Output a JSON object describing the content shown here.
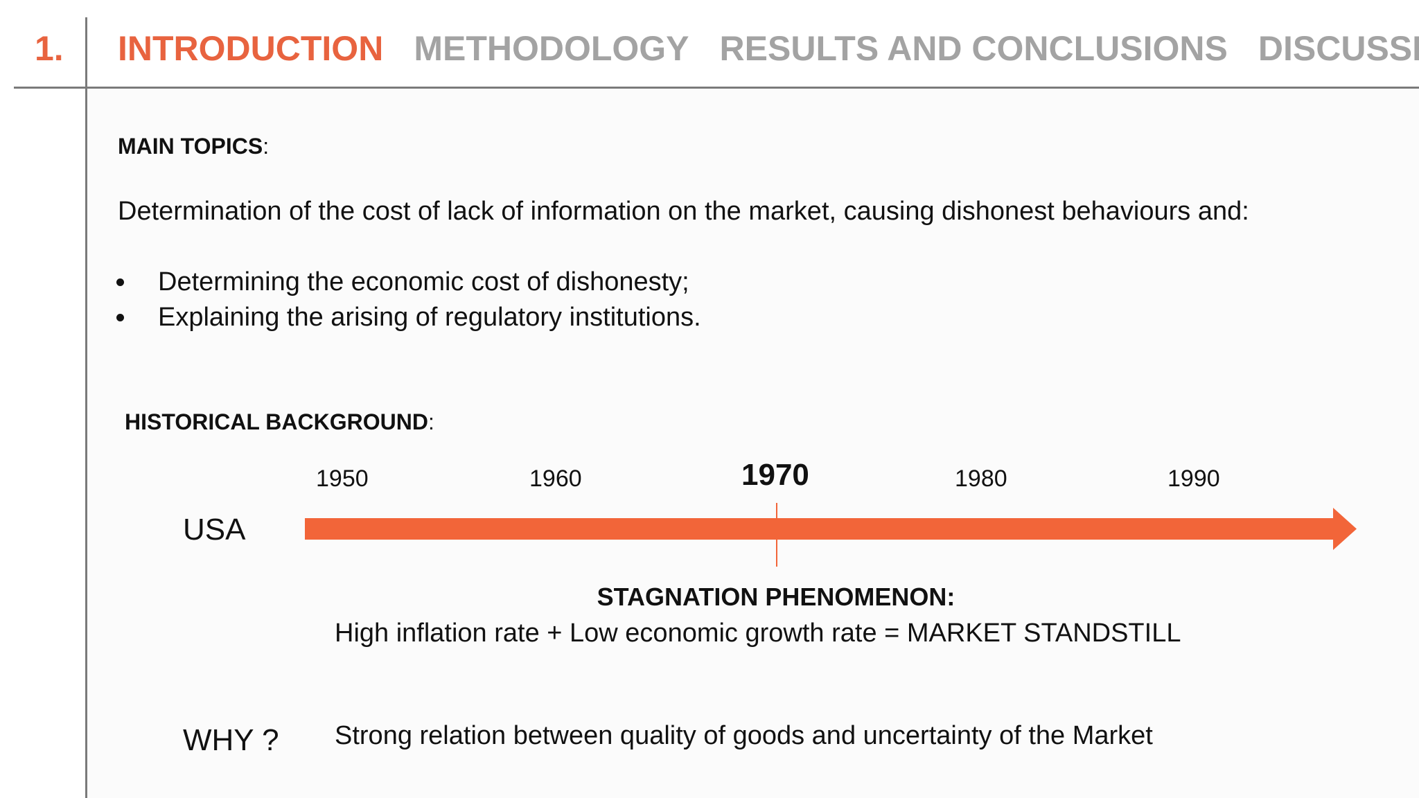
{
  "header": {
    "section_number": "1.",
    "tabs": [
      {
        "label": "INTRODUCTION",
        "active": true
      },
      {
        "label": "METHODOLOGY",
        "active": false
      },
      {
        "label": "RESULTS AND CONCLUSIONS",
        "active": false
      },
      {
        "label": "DISCUSSION",
        "active": false
      }
    ]
  },
  "main_topics": {
    "heading": "MAIN TOPICS",
    "colon": ":",
    "description": "Determination of the cost of lack of information on the market, causing dishonest behaviours and:",
    "bullets": [
      "Determining the economic cost of dishonesty;",
      "Explaining the arising of regulatory institutions."
    ]
  },
  "historical_background": {
    "heading": "HISTORICAL BACKGROUND",
    "colon": ":",
    "country": "USA",
    "years": [
      "1950",
      "1960",
      "1970",
      "1980",
      "1990"
    ],
    "highlight_year": "1970",
    "phenomenon_title": "STAGNATION PHENOMENON:",
    "phenomenon_formula": "High inflation rate + Low economic growth rate = MARKET STANDSTILL",
    "why_label": "WHY ?",
    "why_text": "Strong relation between quality of goods and uncertainty of the Market"
  },
  "colors": {
    "accent": "#e8633f",
    "arrow": "#f26539",
    "inactive_tab": "#a3a3a3",
    "divider": "#7a7a7a"
  }
}
